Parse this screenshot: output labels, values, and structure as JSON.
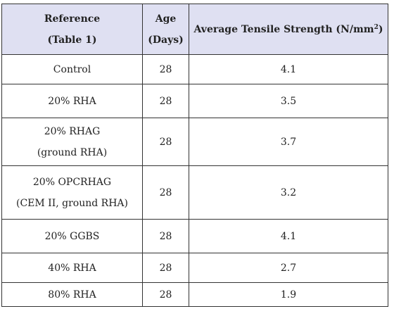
{
  "table": {
    "headers": {
      "reference_line1": "Reference",
      "reference_line2": "(Table 1)",
      "age_line1": "Age",
      "age_line2": "(Days)",
      "strength_label": "Average Tensile Strength (N/mm",
      "strength_sup": "2",
      "strength_close": ")"
    },
    "rows": [
      {
        "reference_line1": "Control",
        "reference_line2": "",
        "age": "28",
        "strength": "4.1"
      },
      {
        "reference_line1": "20% RHA",
        "reference_line2": "",
        "age": "28",
        "strength": "3.5"
      },
      {
        "reference_line1": "20% RHAG",
        "reference_line2": "(ground RHA)",
        "age": "28",
        "strength": "3.7"
      },
      {
        "reference_line1": "20% OPCRHAG",
        "reference_line2": "(CEM II, ground RHA)",
        "age": "28",
        "strength": "3.2"
      },
      {
        "reference_line1": "20% GGBS",
        "reference_line2": "",
        "age": "28",
        "strength": "4.1"
      },
      {
        "reference_line1": "40% RHA",
        "reference_line2": "",
        "age": "28",
        "strength": "2.7"
      },
      {
        "reference_line1": "80% RHA",
        "reference_line2": "",
        "age": "28",
        "strength": "1.9"
      }
    ]
  }
}
